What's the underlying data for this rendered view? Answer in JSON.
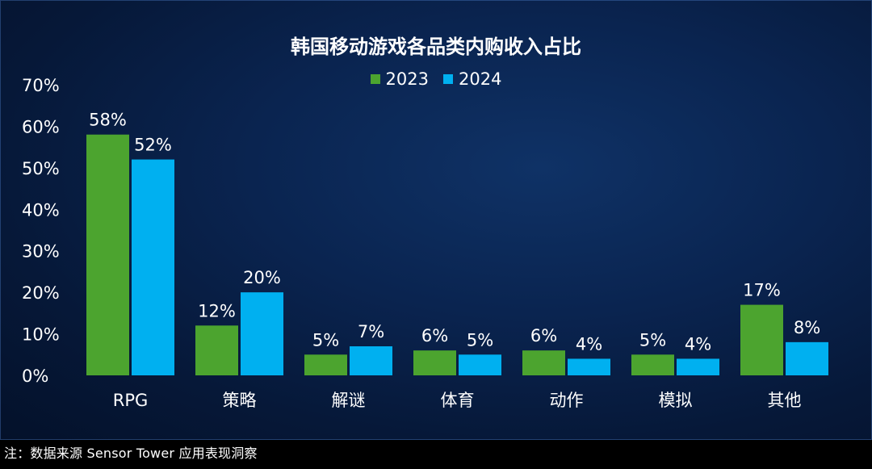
{
  "chart_data": {
    "type": "bar",
    "title": "韩国移动游戏各品类内购收入占比",
    "categories": [
      "RPG",
      "策略",
      "解谜",
      "体育",
      "动作",
      "模拟",
      "其他"
    ],
    "series": [
      {
        "name": "2023",
        "color": "#4ca42f",
        "values": [
          58,
          12,
          5,
          6,
          6,
          5,
          17
        ],
        "labels": [
          "58%",
          "12%",
          "5%",
          "6%",
          "6%",
          "5%",
          "17%"
        ]
      },
      {
        "name": "2024",
        "color": "#00b0f0",
        "values": [
          52,
          20,
          7,
          5,
          4,
          4,
          8
        ],
        "labels": [
          "52%",
          "20%",
          "7%",
          "5%",
          "4%",
          "4%",
          "8%"
        ]
      }
    ],
    "ylim": [
      0,
      70
    ],
    "yticks": [
      0,
      10,
      20,
      30,
      40,
      50,
      60,
      70
    ],
    "ytick_labels": [
      "0%",
      "10%",
      "20%",
      "30%",
      "40%",
      "50%",
      "60%",
      "70%"
    ],
    "xlabel": "",
    "ylabel": "",
    "grid": false,
    "legend_position": "top-center"
  },
  "footnote": "注：数据来源 Sensor Tower 应用表现洞察",
  "colors": {
    "background": "#0a2450",
    "text": "#ffffff"
  }
}
